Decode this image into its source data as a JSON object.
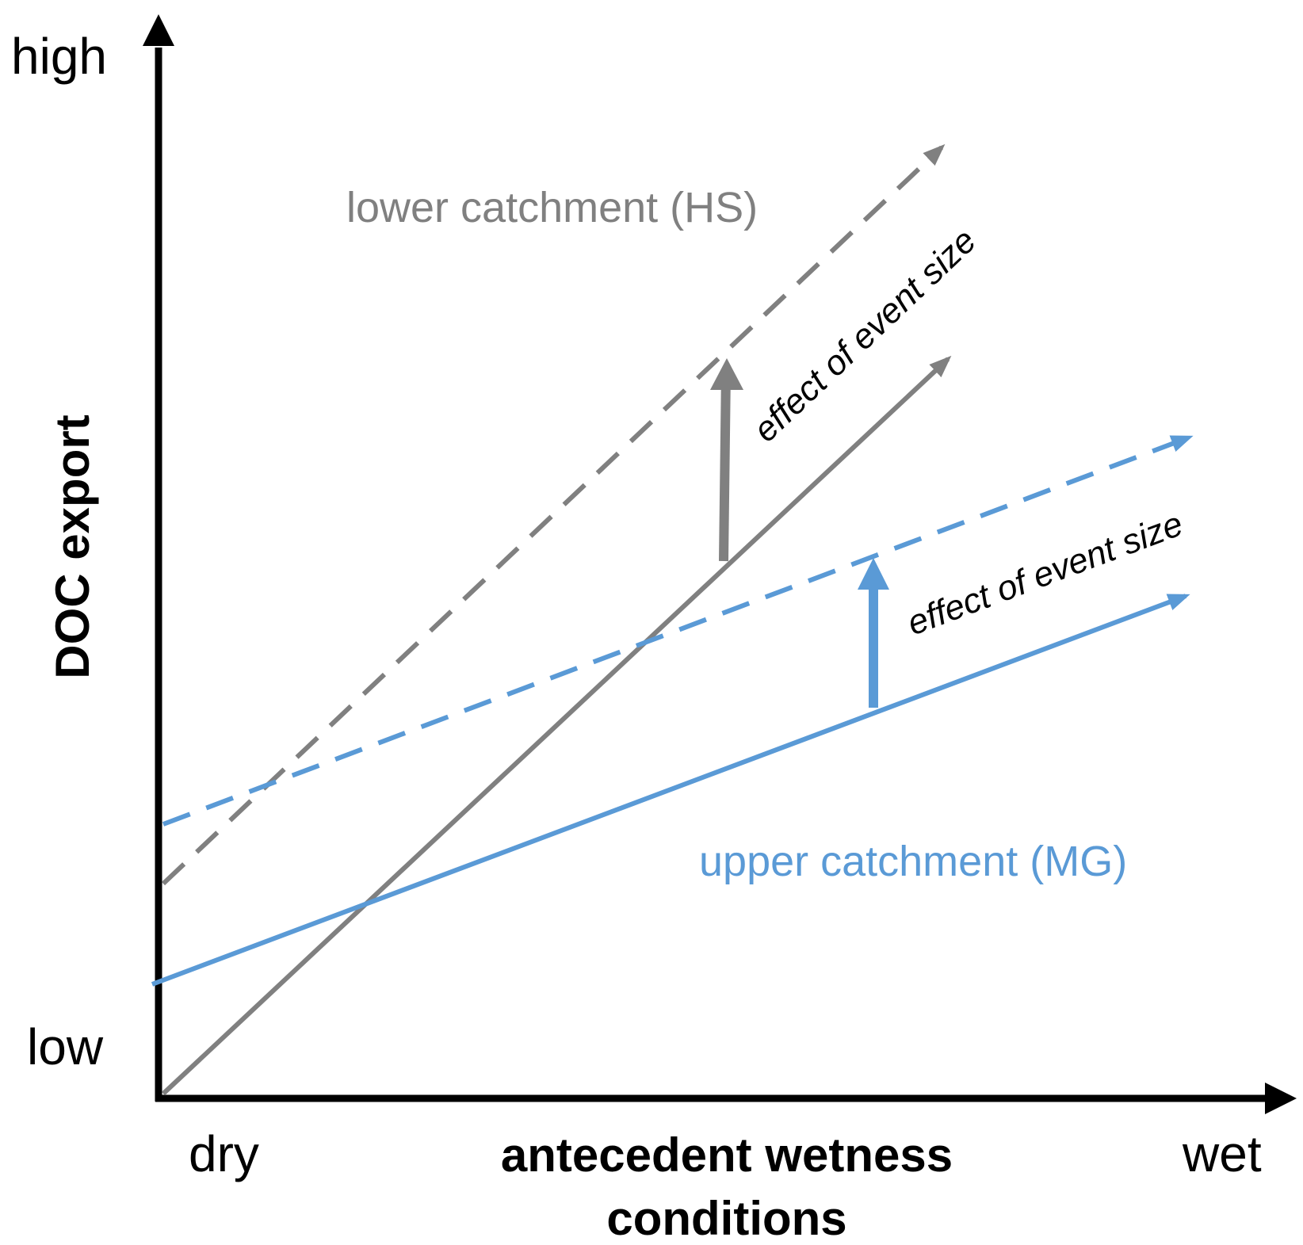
{
  "y_axis": {
    "title": "DOC export",
    "high_label": "high",
    "low_label": "low"
  },
  "x_axis": {
    "title_line1": "antecedent wetness",
    "title_line2": "conditions",
    "low_label": "dry",
    "high_label": "wet"
  },
  "series": {
    "lower": {
      "label": "lower catchment (HS)",
      "color": "#808080"
    },
    "upper": {
      "label": "upper catchment (MG)",
      "color": "#5a9ad6"
    }
  },
  "annotations": {
    "lower_effect": "effect of event size",
    "upper_effect": "effect of event size"
  },
  "colors": {
    "axis": "#000000",
    "text": "#000000"
  }
}
